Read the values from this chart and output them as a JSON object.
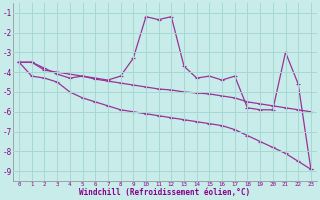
{
  "xlabel": "Windchill (Refroidissement éolien,°C)",
  "bg_color": "#c8ecea",
  "grid_color": "#a8d8d4",
  "line_color": "#993399",
  "xlim": [
    -0.5,
    23.5
  ],
  "ylim": [
    -9.5,
    -0.5
  ],
  "xticks": [
    0,
    1,
    2,
    3,
    4,
    5,
    6,
    7,
    8,
    9,
    10,
    11,
    12,
    13,
    14,
    15,
    16,
    17,
    18,
    19,
    20,
    21,
    22,
    23
  ],
  "yticks": [
    -1,
    -2,
    -3,
    -4,
    -5,
    -6,
    -7,
    -8,
    -9
  ],
  "series1_x": [
    0,
    1,
    2,
    3,
    4,
    5,
    6,
    7,
    8,
    9,
    10,
    11,
    12,
    13,
    14,
    15,
    16,
    17,
    18,
    19,
    20,
    21,
    22,
    23
  ],
  "series1_y": [
    -3.5,
    -3.5,
    -3.8,
    -4.1,
    -4.3,
    -4.2,
    -4.3,
    -4.4,
    -4.2,
    -3.3,
    -1.2,
    -1.35,
    -1.2,
    -3.7,
    -4.3,
    -4.2,
    -4.4,
    -4.2,
    -5.8,
    -5.9,
    -5.9,
    -3.0,
    -4.6,
    -8.9
  ],
  "series2_x": [
    0,
    1,
    2,
    3,
    4,
    5,
    6,
    7,
    8,
    9,
    10,
    11,
    12,
    13,
    14,
    15,
    16,
    17,
    18,
    19,
    20,
    21,
    22,
    23
  ],
  "series2_y": [
    -3.5,
    -3.5,
    -3.9,
    -4.0,
    -4.1,
    -4.2,
    -4.35,
    -4.45,
    -4.55,
    -4.65,
    -4.75,
    -4.85,
    -4.9,
    -5.0,
    -5.05,
    -5.1,
    -5.2,
    -5.3,
    -5.5,
    -5.6,
    -5.7,
    -5.8,
    -5.9,
    -6.0
  ],
  "series3_x": [
    0,
    1,
    2,
    3,
    4,
    5,
    6,
    7,
    8,
    9,
    10,
    11,
    12,
    13,
    14,
    15,
    16,
    17,
    18,
    19,
    20,
    21,
    22,
    23
  ],
  "series3_y": [
    -3.5,
    -4.2,
    -4.3,
    -4.5,
    -5.0,
    -5.3,
    -5.5,
    -5.7,
    -5.9,
    -6.0,
    -6.1,
    -6.2,
    -6.3,
    -6.4,
    -6.5,
    -6.6,
    -6.7,
    -6.9,
    -7.2,
    -7.5,
    -7.8,
    -8.1,
    -8.5,
    -8.9
  ]
}
